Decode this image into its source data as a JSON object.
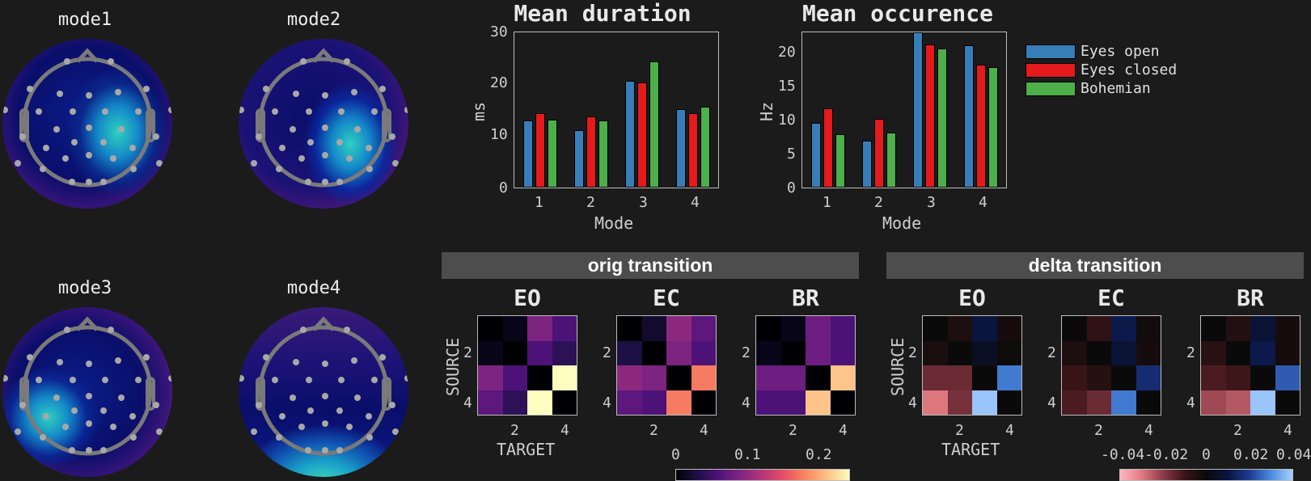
{
  "topomaps": [
    {
      "title": "mode1"
    },
    {
      "title": "mode2"
    },
    {
      "title": "mode3"
    },
    {
      "title": "mode4"
    }
  ],
  "legend": {
    "items": [
      {
        "label": "Eyes open",
        "color": "#377eb8"
      },
      {
        "label": "Eyes closed",
        "color": "#e41a1c"
      },
      {
        "label": "Bohemian",
        "color": "#4daf4a"
      }
    ]
  },
  "duration_chart": {
    "title": "Mean duration",
    "ylabel": "ms",
    "xlabel": "Mode",
    "yticks": [
      "0",
      "10",
      "20",
      "30"
    ],
    "xticks": [
      "1",
      "2",
      "3",
      "4"
    ]
  },
  "occurrence_chart": {
    "title": "Mean occurence",
    "ylabel": "Hz",
    "xlabel": "Mode",
    "yticks": [
      "0",
      "5",
      "10",
      "15",
      "20"
    ],
    "xticks": [
      "1",
      "2",
      "3",
      "4"
    ]
  },
  "orig_panel": {
    "header": "orig transition",
    "titles": [
      "EO",
      "EC",
      "BR"
    ],
    "ylabel": "SOURCE",
    "xlabel": "TARGET",
    "ticks": [
      "2",
      "4"
    ],
    "colorbar_ticks": [
      "0",
      "0.1",
      "0.2"
    ]
  },
  "delta_panel": {
    "header": "delta transition",
    "titles": [
      "EO",
      "EC",
      "BR"
    ],
    "ylabel": "SOURCE",
    "xlabel": "TARGET",
    "ticks": [
      "2",
      "4"
    ],
    "colorbar_ticks": [
      "-0.04",
      "-0.02",
      "0",
      "0.02",
      "0.04"
    ]
  },
  "chart_data": [
    {
      "type": "bar",
      "title": "Mean duration",
      "xlabel": "Mode",
      "ylabel": "ms",
      "categories": [
        "1",
        "2",
        "3",
        "4"
      ],
      "ylim": [
        0,
        30
      ],
      "series": [
        {
          "name": "Eyes open",
          "values": [
            13.0,
            11.1,
            20.6,
            15.2
          ]
        },
        {
          "name": "Eyes closed",
          "values": [
            14.3,
            13.7,
            20.3,
            14.3
          ]
        },
        {
          "name": "Bohemian",
          "values": [
            13.2,
            12.9,
            24.3,
            15.7
          ]
        }
      ],
      "legend_position": "right"
    },
    {
      "type": "bar",
      "title": "Mean occurence",
      "xlabel": "Mode",
      "ylabel": "Hz",
      "categories": [
        "1",
        "2",
        "3",
        "4"
      ],
      "ylim": [
        0,
        23
      ],
      "series": [
        {
          "name": "Eyes open",
          "values": [
            9.6,
            6.9,
            23.0,
            21.1
          ]
        },
        {
          "name": "Eyes closed",
          "values": [
            11.8,
            10.2,
            21.2,
            18.2
          ]
        },
        {
          "name": "Bohemian",
          "values": [
            7.9,
            8.1,
            20.6,
            17.9
          ]
        }
      ],
      "legend_position": "right"
    },
    {
      "type": "heatmap",
      "title": "orig transition",
      "xlabel": "TARGET",
      "ylabel": "SOURCE",
      "colorbar_range": [
        0,
        0.25
      ],
      "matrices": [
        {
          "name": "EO",
          "values": [
            [
              0,
              0.01,
              0.09,
              0.06
            ],
            [
              0.01,
              0,
              0.06,
              0.04
            ],
            [
              0.09,
              0.06,
              0,
              0.25
            ],
            [
              0.07,
              0.04,
              0.25,
              0
            ]
          ]
        },
        {
          "name": "EC",
          "values": [
            [
              0,
              0.02,
              0.1,
              0.07
            ],
            [
              0.03,
              0,
              0.09,
              0.06
            ],
            [
              0.1,
              0.09,
              0,
              0.18
            ],
            [
              0.07,
              0.06,
              0.18,
              0
            ]
          ]
        },
        {
          "name": "BR",
          "values": [
            [
              0,
              0.01,
              0.08,
              0.06
            ],
            [
              0.01,
              0,
              0.08,
              0.06
            ],
            [
              0.08,
              0.08,
              0,
              0.22
            ],
            [
              0.06,
              0.06,
              0.22,
              0
            ]
          ]
        }
      ]
    },
    {
      "type": "heatmap",
      "title": "delta transition",
      "xlabel": "TARGET",
      "ylabel": "SOURCE",
      "colorbar_range": [
        -0.05,
        0.05
      ],
      "matrices": [
        {
          "name": "EO",
          "values": [
            [
              0,
              -0.005,
              0.012,
              -0.003
            ],
            [
              -0.004,
              0,
              0.006,
              -0.001
            ],
            [
              -0.02,
              -0.02,
              0,
              0.035
            ],
            [
              -0.037,
              -0.022,
              0.048,
              0
            ]
          ]
        },
        {
          "name": "EC",
          "values": [
            [
              0,
              -0.01,
              0.014,
              -0.002
            ],
            [
              -0.005,
              0,
              0.01,
              -0.003
            ],
            [
              -0.012,
              -0.007,
              0,
              0.02
            ],
            [
              -0.015,
              -0.02,
              0.035,
              0
            ]
          ]
        },
        {
          "name": "BR",
          "values": [
            [
              0,
              -0.006,
              0.01,
              -0.003
            ],
            [
              -0.008,
              0,
              0.014,
              -0.003
            ],
            [
              -0.015,
              -0.013,
              0,
              0.03
            ],
            [
              -0.028,
              -0.031,
              0.048,
              0
            ]
          ]
        }
      ]
    }
  ]
}
